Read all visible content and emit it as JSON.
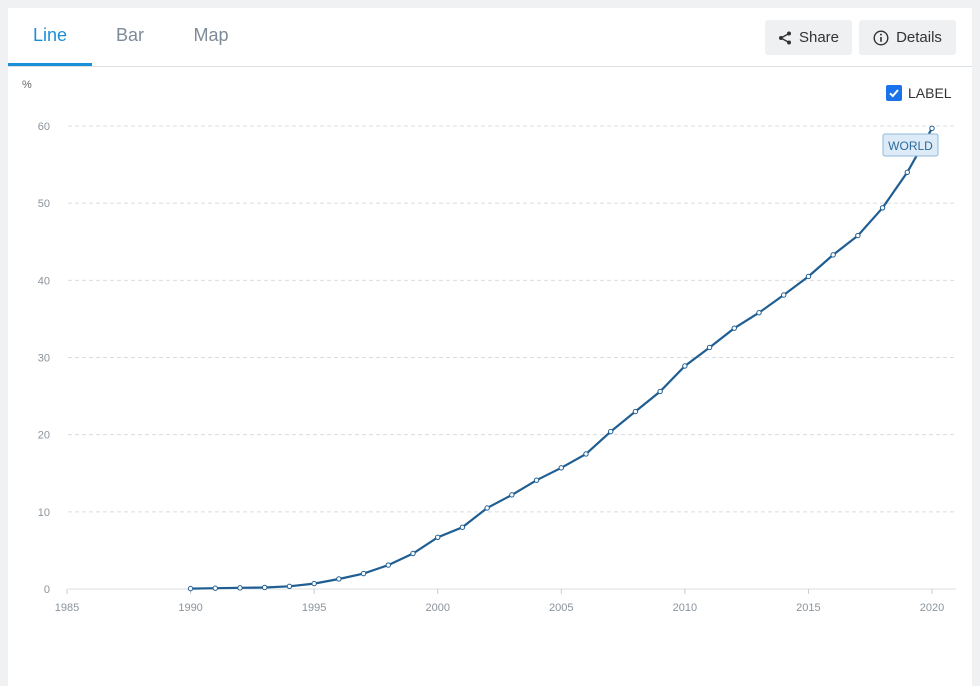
{
  "tabs": [
    {
      "label": "Line",
      "active": true
    },
    {
      "label": "Bar",
      "active": false
    },
    {
      "label": "Map",
      "active": false
    }
  ],
  "actions": {
    "share_label": "Share",
    "details_label": "Details"
  },
  "label_toggle": {
    "label": "LABEL",
    "checked": true
  },
  "colors": {
    "accent": "#1b8fd6",
    "series": "#1f5e92",
    "checkbox": "#1a73e8"
  },
  "chart_data": {
    "type": "line",
    "ylabel": "%",
    "xlim": [
      1985,
      2020
    ],
    "ylim": [
      0,
      60
    ],
    "x_ticks": [
      1985,
      1990,
      1995,
      2000,
      2005,
      2010,
      2015,
      2020
    ],
    "y_ticks": [
      0,
      10,
      20,
      30,
      40,
      50,
      60
    ],
    "grid": true,
    "series": [
      {
        "name": "WORLD",
        "x": [
          1990,
          1991,
          1992,
          1993,
          1994,
          1995,
          1996,
          1997,
          1998,
          1999,
          2000,
          2001,
          2002,
          2003,
          2004,
          2005,
          2006,
          2007,
          2008,
          2009,
          2010,
          2011,
          2012,
          2013,
          2014,
          2015,
          2016,
          2017,
          2018,
          2019,
          2020
        ],
        "values": [
          0.05,
          0.1,
          0.15,
          0.2,
          0.35,
          0.7,
          1.3,
          2.0,
          3.1,
          4.6,
          6.7,
          8.0,
          10.5,
          12.2,
          14.1,
          15.7,
          17.5,
          20.4,
          23.0,
          25.6,
          28.9,
          31.3,
          33.8,
          35.8,
          38.1,
          40.5,
          43.3,
          45.8,
          49.4,
          54.0,
          59.7
        ]
      }
    ]
  }
}
